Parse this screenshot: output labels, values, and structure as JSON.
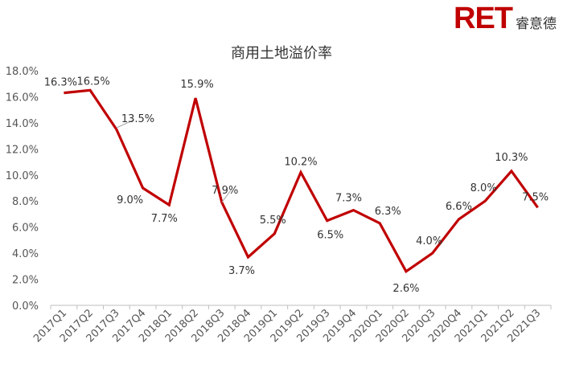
{
  "logo": {
    "mark": "RET",
    "name": "睿意德"
  },
  "chart_data": {
    "type": "line",
    "title": "商用土地溢价率",
    "xlabel": "",
    "ylabel": "",
    "categories": [
      "2017Q1",
      "2017Q2",
      "2017Q3",
      "2017Q4",
      "2018Q1",
      "2018Q2",
      "2018Q3",
      "2018Q4",
      "2019Q1",
      "2019Q2",
      "2019Q3",
      "2019Q4",
      "2020Q1",
      "2020Q2",
      "2020Q3",
      "2020Q4",
      "2021Q1",
      "2021Q2",
      "2021Q3"
    ],
    "series": [
      {
        "values": [
          16.3,
          16.5,
          13.5,
          9.0,
          7.7,
          15.9,
          7.9,
          3.7,
          5.5,
          10.2,
          6.5,
          7.3,
          6.3,
          2.6,
          4.0,
          6.6,
          8.0,
          10.3,
          7.5
        ],
        "labels": [
          "16.3%",
          "16.5%",
          "13.5%",
          "9.0%",
          "7.7%",
          "15.9%",
          "7.9%",
          "3.7%",
          "5.5%",
          "10.2%",
          "6.5%",
          "7.3%",
          "6.3%",
          "2.6%",
          "4.0%",
          "6.6%",
          "8.0%",
          "10.3%",
          "7.5%"
        ]
      }
    ],
    "ylim": [
      0,
      18
    ],
    "yticks": [
      "0.0%",
      "2.0%",
      "4.0%",
      "6.0%",
      "8.0%",
      "10.0%",
      "12.0%",
      "14.0%",
      "16.0%",
      "18.0%"
    ],
    "line_color": "#c00000",
    "grid": false
  }
}
